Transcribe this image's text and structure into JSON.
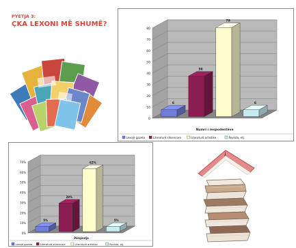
{
  "question": {
    "label": "PYETJA 3:",
    "title": "ÇKA LEXONI MË SHUMË?"
  },
  "colors": {
    "bar_1": "#6f7fd8",
    "bar_2": "#8b1d52",
    "bar_3": "#fffccd",
    "bar_4": "#c6ecf2",
    "wall": "#b9b9b9",
    "floor": "#858585",
    "accent_red": "#d8433a"
  },
  "chart_data": [
    {
      "type": "bar",
      "categories": [
        "Lexojë gazeta",
        "Literaturë shkencore",
        "Literaturë artistike",
        "Revista, etj."
      ],
      "values": [
        6,
        36,
        79,
        6
      ],
      "data_labels": [
        "6",
        "36",
        "79",
        "6"
      ],
      "y_ticks": [
        "0",
        "10",
        "20",
        "30",
        "40",
        "50",
        "60",
        "70",
        "80"
      ],
      "ylim": [
        0,
        80
      ],
      "xlabel": "Numri i respodentëve",
      "legend": [
        "Lexojë gazeta",
        "Literaturë shkencore",
        "Literaturë artistike",
        "Revista, etj."
      ],
      "legend_position": "bottom",
      "grid": true
    },
    {
      "type": "bar",
      "categories": [
        "Lexojë gazeta",
        "Literaturë shkencore",
        "Literaturë artistike",
        "Revista, etj."
      ],
      "values": [
        5,
        28,
        62,
        5
      ],
      "data_labels": [
        "5%",
        "28%",
        "62%",
        "5%"
      ],
      "y_ticks": [
        "0%",
        "10%",
        "20%",
        "30%",
        "40%",
        "50%",
        "60%",
        "70%"
      ],
      "ylim": [
        0,
        70
      ],
      "xlabel": "Përqindja",
      "legend": [
        "Lexojë gazeta",
        "Literaturë shkencore",
        "Literaturë artistike",
        "Revista, etj."
      ],
      "legend_position": "bottom",
      "grid": true
    }
  ]
}
